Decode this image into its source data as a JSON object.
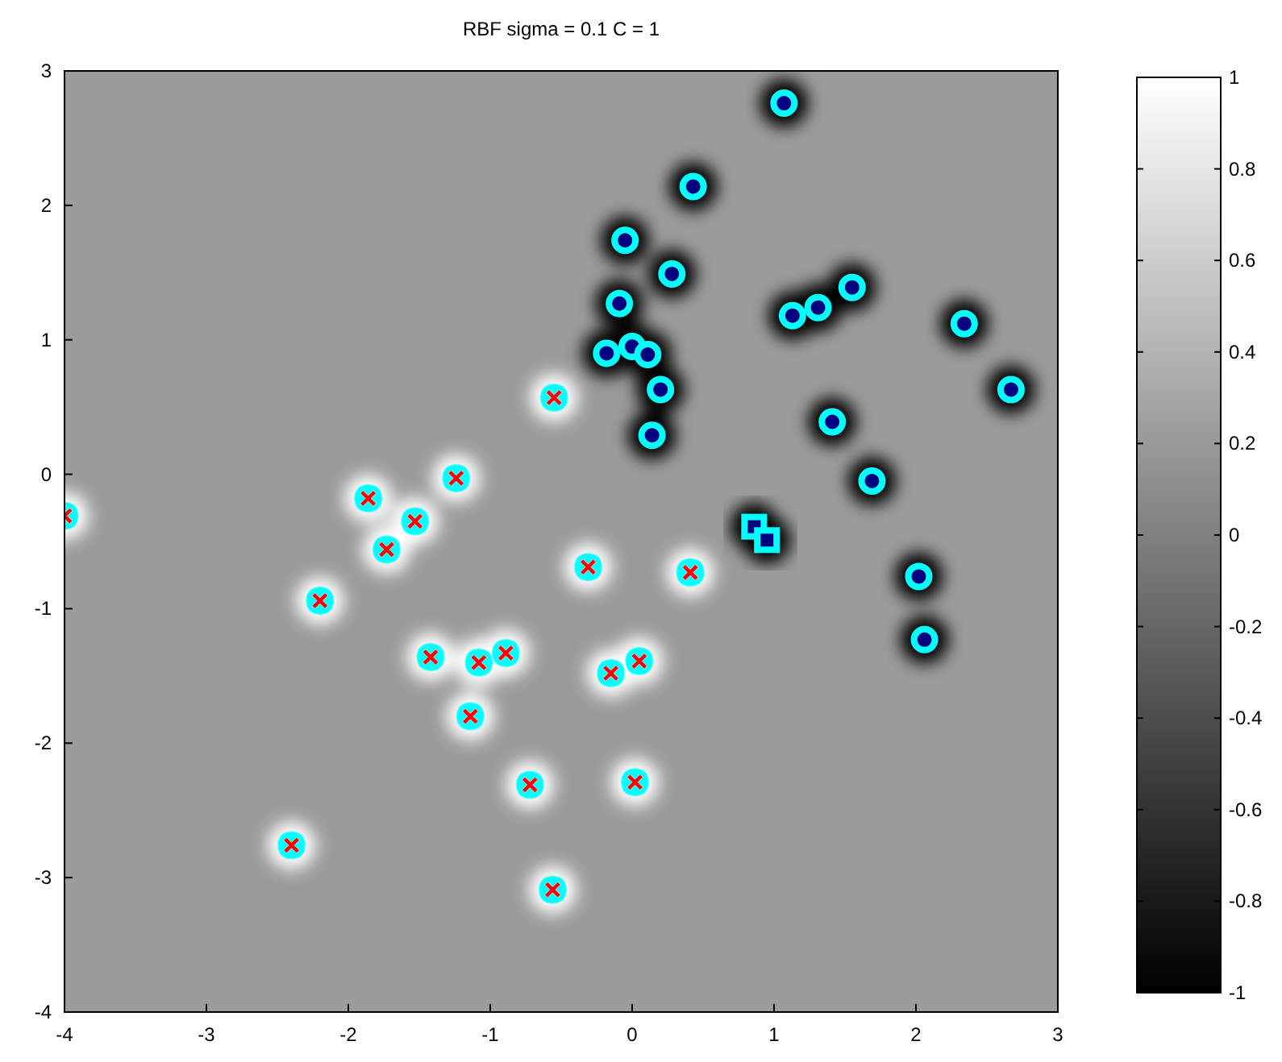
{
  "chart_data": {
    "type": "scatter",
    "title": "RBF sigma = 0.1  C = 1",
    "xlim": [
      -4,
      3
    ],
    "xticks": [
      -4,
      -3,
      -2,
      -1,
      0,
      1,
      2,
      3
    ],
    "ylim": [
      -4,
      3
    ],
    "yticks": [
      -4,
      -3,
      -2,
      -1,
      0,
      1,
      2,
      3
    ],
    "clim": [
      -1,
      1
    ],
    "cticks": [
      -1,
      -0.8,
      -0.6,
      -0.4,
      -0.2,
      0,
      0.2,
      0.4,
      0.6,
      0.8,
      1
    ],
    "grid": false,
    "series": [
      {
        "color": "#000080",
        "marker": "circle",
        "x": [
          1.07,
          0.43,
          -0.05,
          0.28,
          -0.09,
          -0.18,
          0.0,
          0.11,
          0.2,
          0.14,
          1.13,
          1.31,
          1.55,
          2.34,
          2.67,
          1.41,
          1.69,
          2.02,
          2.06
        ],
        "values": [
          2.76,
          2.14,
          1.74,
          1.49,
          1.27,
          0.9,
          0.95,
          0.89,
          0.63,
          0.29,
          1.18,
          1.24,
          1.39,
          1.12,
          0.63,
          0.39,
          -0.05,
          -0.76,
          -1.23
        ]
      },
      {
        "color": "#000080",
        "marker": "square",
        "x": [
          0.86,
          0.95
        ],
        "values": [
          -0.39,
          -0.49
        ]
      },
      {
        "color": "#ff0000",
        "marker": "cross",
        "x": [
          -4.0,
          -0.55,
          -1.86,
          -1.24,
          -1.53,
          -1.73,
          -0.31,
          0.41,
          -2.2,
          -1.42,
          -1.08,
          -0.89,
          -0.15,
          0.05,
          -1.14,
          -0.72,
          0.02,
          -2.4,
          -0.56
        ],
        "values": [
          -0.31,
          0.57,
          -0.18,
          -0.03,
          -0.35,
          -0.56,
          -0.69,
          -0.73,
          -0.94,
          -1.36,
          -1.4,
          -1.33,
          -1.48,
          -1.39,
          -1.8,
          -2.31,
          -2.29,
          -2.76,
          -3.09
        ]
      }
    ]
  }
}
